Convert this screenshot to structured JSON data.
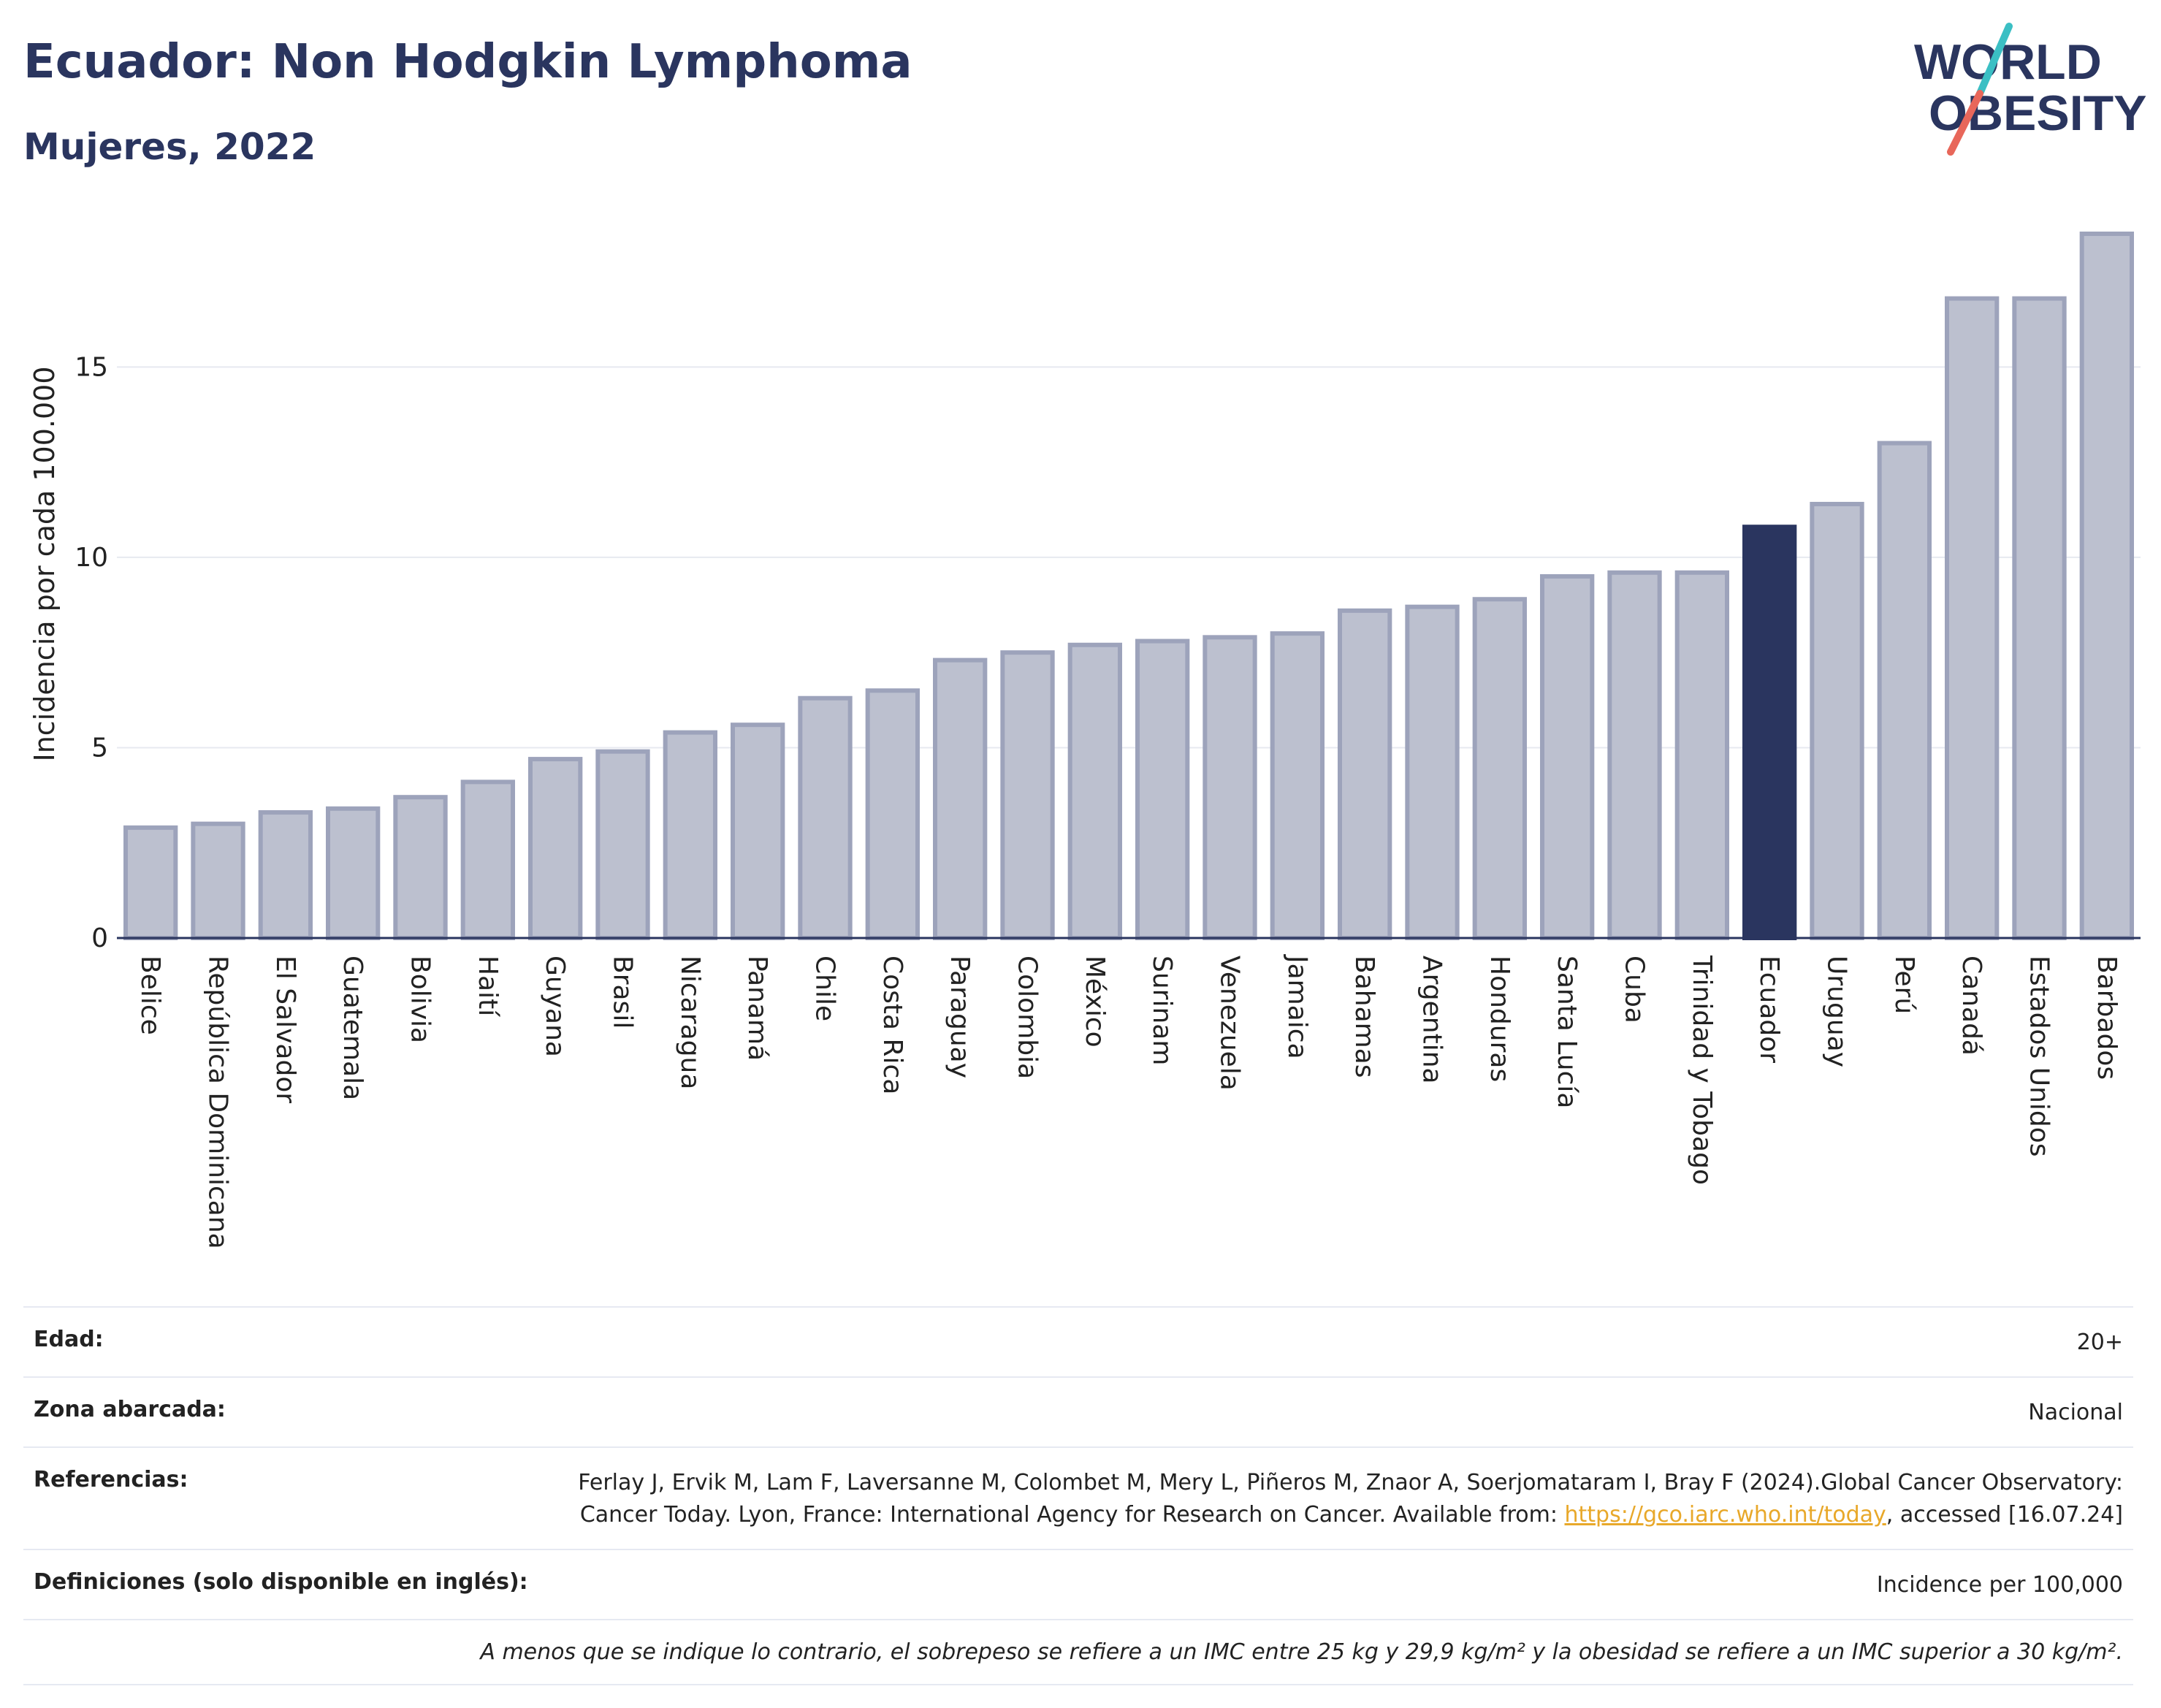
{
  "header": {
    "title": "Ecuador: Non Hodgkin Lymphoma",
    "subtitle": "Mujeres, 2022"
  },
  "logo": {
    "line1": "WORLD",
    "line2": "OBESITY",
    "colors": {
      "text": "#2a355f",
      "slash_top": "#3bbfc4",
      "slash_bottom": "#e8675a"
    }
  },
  "chart_data": {
    "type": "bar",
    "title": "",
    "xlabel": "",
    "ylabel": "Incidencia por cada 100.000",
    "ylim": [
      0,
      18.5
    ],
    "yticks": [
      0,
      5,
      10,
      15
    ],
    "grid": true,
    "highlight": "Ecuador",
    "colors": {
      "bar": "#bcc0cf",
      "bar_border": "#9da3bb",
      "highlight": "#2a355f",
      "grid": "#e7e9f0",
      "axis": "#2a355f"
    },
    "categories": [
      "Belice",
      "República Dominicana",
      "El Salvador",
      "Guatemala",
      "Bolivia",
      "Haití",
      "Guyana",
      "Brasil",
      "Nicaragua",
      "Panamá",
      "Chile",
      "Costa Rica",
      "Paraguay",
      "Colombia",
      "México",
      "Surinam",
      "Venezuela",
      "Jamaica",
      "Bahamas",
      "Argentina",
      "Honduras",
      "Santa Lucía",
      "Cuba",
      "Trinidad y Tobago",
      "Ecuador",
      "Uruguay",
      "Perú",
      "Canadá",
      "Estados Unidos",
      "Barbados"
    ],
    "values": [
      2.9,
      3.0,
      3.3,
      3.4,
      3.7,
      4.1,
      4.7,
      4.9,
      5.4,
      5.6,
      6.3,
      6.5,
      7.3,
      7.5,
      7.7,
      7.8,
      7.9,
      8.0,
      8.6,
      8.7,
      8.9,
      9.5,
      9.6,
      9.6,
      10.8,
      11.4,
      13.0,
      16.8,
      16.8,
      18.5
    ]
  },
  "meta": {
    "rows": [
      {
        "label": "Edad:",
        "value": "20+"
      },
      {
        "label": "Zona abarcada:",
        "value": "Nacional"
      },
      {
        "label": "Referencias:",
        "value_pre": "Ferlay J, Ervik M, Lam F, Laversanne M, Colombet M, Mery L, Piñeros M, Znaor A, Soerjomataram I, Bray F (2024).Global Cancer Observatory: Cancer Today. Lyon, France: International Agency for Research on Cancer. Available from: ",
        "link": "https://gco.iarc.who.int/today",
        "value_post": ", accessed [16.07.24]"
      },
      {
        "label": "Definiciones (solo disponible en inglés):",
        "value": "Incidence per 100,000"
      }
    ],
    "note": "A menos que se indique lo contrario, el sobrepeso se refiere a un IMC entre 25 kg y 29,9 kg/m² y la obesidad se refiere a un IMC superior a 30 kg/m²."
  }
}
